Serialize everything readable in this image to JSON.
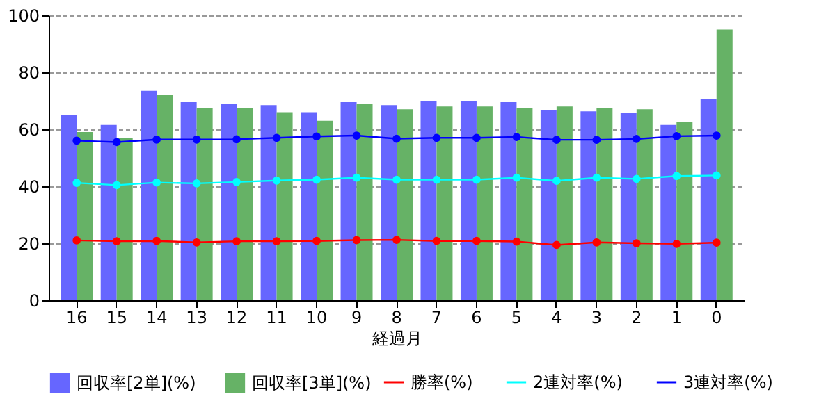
{
  "chart_data": {
    "type": "bar",
    "xlabel": "経過月",
    "categories": [
      "16",
      "15",
      "14",
      "13",
      "12",
      "11",
      "10",
      "9",
      "8",
      "7",
      "6",
      "5",
      "4",
      "3",
      "2",
      "1",
      "0"
    ],
    "series": [
      {
        "name": "回収率[2単](%)",
        "color": "#6666ff",
        "values": [
          65,
          61.5,
          73.5,
          69.5,
          69,
          68.5,
          66,
          69.5,
          68.5,
          70,
          70,
          69.5,
          66.8,
          66.3,
          65.8,
          61.5,
          70.5
        ]
      },
      {
        "name": "回収率[3単](%)",
        "color": "#66b266",
        "values": [
          59,
          57,
          72,
          67.5,
          67.5,
          66,
          63,
          69,
          67,
          68,
          68,
          67.5,
          68,
          67.5,
          67,
          62.5,
          95
        ]
      },
      {
        "name": "勝率(%)",
        "type": "line",
        "color": "#ff0000",
        "values": [
          21,
          20.7,
          20.8,
          20.3,
          20.7,
          20.7,
          20.8,
          21.1,
          21.2,
          20.8,
          20.8,
          20.6,
          19.4,
          20.3,
          20,
          19.8,
          20.2
        ]
      },
      {
        "name": "2連対率(%)",
        "type": "line",
        "color": "#00ffff",
        "values": [
          41.2,
          40.4,
          41.3,
          41,
          41.5,
          42,
          42.3,
          43,
          42.3,
          42.3,
          42.3,
          43,
          41.9,
          43,
          42.6,
          43.6,
          43.8
        ]
      },
      {
        "name": "3連対率(%)",
        "type": "line",
        "color": "#0000ff",
        "values": [
          56,
          55.5,
          56.4,
          56.4,
          56.5,
          57,
          57.5,
          57.8,
          56.7,
          57,
          57,
          57.3,
          56.3,
          56.3,
          56.6,
          57.6,
          57.8
        ]
      }
    ],
    "ylim": [
      0,
      100
    ],
    "yticks": [
      0,
      20,
      40,
      60,
      80,
      100
    ],
    "grid": "y",
    "legend": "bottom",
    "marker": "circle",
    "line_style": "solid"
  }
}
